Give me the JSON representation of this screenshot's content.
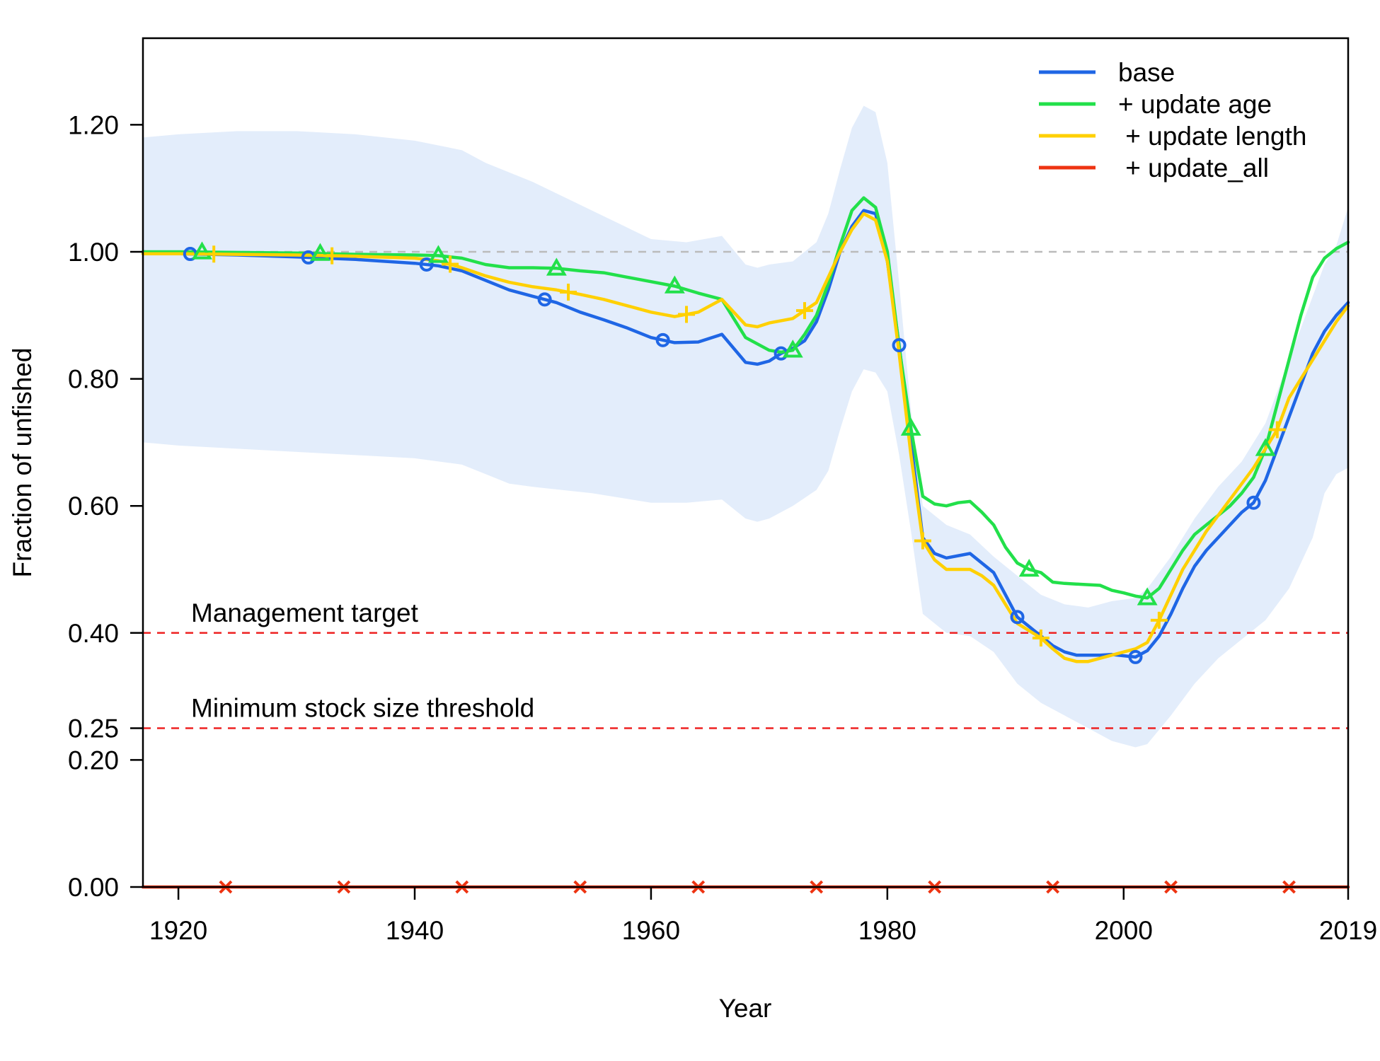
{
  "chart_data": {
    "type": "line",
    "xlabel": "Year",
    "ylabel": "Fraction of unfished",
    "xlim": [
      1917,
      2019
    ],
    "ylim": [
      0,
      1.31
    ],
    "x_ticks": [
      {
        "value": 1920,
        "label": "1920"
      },
      {
        "value": 1940,
        "label": "1940"
      },
      {
        "value": 1960,
        "label": "1960"
      },
      {
        "value": 1980,
        "label": "1980"
      },
      {
        "value": 2000,
        "label": "2000"
      },
      {
        "value": 2019,
        "label": "2019"
      }
    ],
    "y_ticks": [
      {
        "value": 0.0,
        "label": "0.00"
      },
      {
        "value": 0.2,
        "label": "0.20"
      },
      {
        "value": 0.25,
        "label": "0.25"
      },
      {
        "value": 0.4,
        "label": "0.40"
      },
      {
        "value": 0.6,
        "label": "0.60"
      },
      {
        "value": 0.8,
        "label": "0.80"
      },
      {
        "value": 1.0,
        "label": "1.00"
      },
      {
        "value": 1.2,
        "label": "1.20"
      }
    ],
    "grid": false,
    "legend_position": "top-right",
    "reference_lines": [
      {
        "value": 1.0,
        "label": "",
        "color": "#bbbbbb",
        "style": "dashed"
      },
      {
        "value": 0.4,
        "label": "Management target",
        "color": "#ee2222",
        "style": "dashed"
      },
      {
        "value": 0.25,
        "label": "Minimum stock size threshold",
        "color": "#ee2222",
        "style": "dashed"
      }
    ],
    "uncertainty_band": {
      "series": "base",
      "color": "#e3edfb",
      "x": [
        1917,
        1920,
        1925,
        1930,
        1935,
        1940,
        1944,
        1946,
        1948,
        1950,
        1955,
        1960,
        1963,
        1966,
        1968,
        1969,
        1970,
        1972,
        1974,
        1975,
        1976,
        1977,
        1978,
        1979,
        1980,
        1981,
        1982,
        1983,
        1985,
        1987,
        1989,
        1991,
        1993,
        1995,
        1997,
        1999,
        2001,
        2002,
        2004,
        2006,
        2008,
        2010,
        2012,
        2014,
        2016,
        2017,
        2018,
        2019
      ],
      "upper": [
        1.18,
        1.185,
        1.19,
        1.19,
        1.185,
        1.175,
        1.16,
        1.14,
        1.125,
        1.11,
        1.065,
        1.02,
        1.015,
        1.025,
        0.98,
        0.975,
        0.98,
        0.985,
        1.015,
        1.06,
        1.13,
        1.195,
        1.23,
        1.22,
        1.14,
        0.95,
        0.75,
        0.6,
        0.57,
        0.555,
        0.52,
        0.49,
        0.46,
        0.445,
        0.44,
        0.45,
        0.455,
        0.47,
        0.52,
        0.58,
        0.63,
        0.67,
        0.73,
        0.83,
        0.93,
        0.98,
        1.01,
        1.07
      ],
      "lower": [
        0.7,
        0.695,
        0.69,
        0.685,
        0.68,
        0.675,
        0.665,
        0.65,
        0.635,
        0.63,
        0.62,
        0.605,
        0.605,
        0.61,
        0.58,
        0.575,
        0.58,
        0.6,
        0.625,
        0.655,
        0.72,
        0.78,
        0.815,
        0.81,
        0.78,
        0.68,
        0.56,
        0.43,
        0.4,
        0.395,
        0.37,
        0.32,
        0.29,
        0.27,
        0.25,
        0.23,
        0.22,
        0.225,
        0.27,
        0.32,
        0.36,
        0.39,
        0.42,
        0.47,
        0.55,
        0.62,
        0.65,
        0.66
      ]
    },
    "series": [
      {
        "name": "base",
        "color": "#1f66e5",
        "marker": "circle",
        "marker_x": [
          1921,
          1931,
          1941,
          1951,
          1961,
          1971,
          1981,
          1991,
          2001,
          2011
        ],
        "x": [
          1917,
          1920,
          1925,
          1930,
          1935,
          1940,
          1942,
          1944,
          1946,
          1948,
          1950,
          1952,
          1954,
          1956,
          1958,
          1960,
          1962,
          1964,
          1966,
          1968,
          1969,
          1970,
          1971,
          1972,
          1973,
          1974,
          1975,
          1976,
          1977,
          1978,
          1979,
          1980,
          1981,
          1982,
          1983,
          1984,
          1985,
          1987,
          1988,
          1989,
          1990,
          1991,
          1992,
          1993,
          1994,
          1995,
          1996,
          1997,
          1998,
          1999,
          2000,
          2001,
          2002,
          2003,
          2004,
          2005,
          2006,
          2007,
          2008,
          2009,
          2010,
          2011,
          2012,
          2013,
          2014,
          2015,
          2016,
          2017,
          2018,
          2019
        ],
        "y": [
          1.0,
          0.997,
          0.995,
          0.992,
          0.988,
          0.982,
          0.978,
          0.97,
          0.955,
          0.94,
          0.93,
          0.92,
          0.905,
          0.893,
          0.88,
          0.865,
          0.857,
          0.858,
          0.87,
          0.826,
          0.823,
          0.828,
          0.84,
          0.848,
          0.86,
          0.89,
          0.94,
          1.0,
          1.04,
          1.065,
          1.06,
          0.985,
          0.853,
          0.7,
          0.55,
          0.525,
          0.518,
          0.525,
          0.51,
          0.495,
          0.46,
          0.425,
          0.41,
          0.395,
          0.38,
          0.37,
          0.365,
          0.365,
          0.365,
          0.366,
          0.364,
          0.362,
          0.372,
          0.395,
          0.43,
          0.47,
          0.505,
          0.53,
          0.55,
          0.57,
          0.59,
          0.605,
          0.64,
          0.69,
          0.74,
          0.79,
          0.84,
          0.875,
          0.9,
          0.92
        ]
      },
      {
        "name": "+ update age",
        "color": "#22e04a",
        "marker": "triangle",
        "marker_x": [
          1922,
          1932,
          1942,
          1952,
          1962,
          1972,
          1982,
          1992,
          2002,
          2012
        ],
        "x": [
          1917,
          1920,
          1925,
          1930,
          1935,
          1940,
          1942,
          1944,
          1946,
          1948,
          1950,
          1952,
          1954,
          1956,
          1958,
          1960,
          1962,
          1964,
          1966,
          1967,
          1968,
          1969,
          1970,
          1971,
          1972,
          1973,
          1974,
          1975,
          1976,
          1977,
          1978,
          1979,
          1980,
          1981,
          1982,
          1983,
          1984,
          1985,
          1986,
          1987,
          1988,
          1989,
          1990,
          1991,
          1992,
          1993,
          1994,
          1995,
          1996,
          1997,
          1998,
          1999,
          2000,
          2001,
          2002,
          2003,
          2004,
          2005,
          2006,
          2007,
          2008,
          2009,
          2010,
          2011,
          2012,
          2013,
          2014,
          2015,
          2016,
          2017,
          2018,
          2019
        ],
        "y": [
          1.0,
          1.0,
          0.999,
          0.998,
          0.996,
          0.995,
          0.994,
          0.99,
          0.98,
          0.975,
          0.975,
          0.974,
          0.97,
          0.967,
          0.96,
          0.953,
          0.946,
          0.935,
          0.925,
          0.895,
          0.865,
          0.855,
          0.845,
          0.842,
          0.845,
          0.87,
          0.9,
          0.95,
          1.01,
          1.065,
          1.085,
          1.07,
          1.0,
          0.85,
          0.722,
          0.615,
          0.603,
          0.6,
          0.605,
          0.607,
          0.59,
          0.57,
          0.535,
          0.51,
          0.5,
          0.495,
          0.48,
          0.478,
          0.477,
          0.476,
          0.475,
          0.467,
          0.463,
          0.458,
          0.455,
          0.47,
          0.5,
          0.53,
          0.555,
          0.57,
          0.585,
          0.6,
          0.62,
          0.645,
          0.69,
          0.76,
          0.83,
          0.9,
          0.96,
          0.99,
          1.005,
          1.015
        ]
      },
      {
        "name": " + update length",
        "color": "#ffd000",
        "marker": "plus",
        "marker_x": [
          1923,
          1933,
          1943,
          1953,
          1963,
          1973,
          1983,
          1993,
          2003,
          2013
        ],
        "x": [
          1917,
          1920,
          1925,
          1930,
          1935,
          1940,
          1942,
          1944,
          1946,
          1948,
          1950,
          1952,
          1954,
          1956,
          1958,
          1960,
          1962,
          1964,
          1966,
          1968,
          1969,
          1970,
          1972,
          1974,
          1975,
          1976,
          1977,
          1978,
          1979,
          1980,
          1981,
          1982,
          1983,
          1984,
          1985,
          1987,
          1988,
          1989,
          1990,
          1991,
          1993,
          1994,
          1995,
          1996,
          1997,
          1998,
          1999,
          2000,
          2001,
          2002,
          2003,
          2004,
          2005,
          2006,
          2007,
          2008,
          2009,
          2010,
          2011,
          2012,
          2013,
          2014,
          2015,
          2016,
          2017,
          2018,
          2019
        ],
        "y": [
          0.997,
          0.997,
          0.996,
          0.995,
          0.993,
          0.99,
          0.986,
          0.975,
          0.962,
          0.952,
          0.945,
          0.94,
          0.933,
          0.925,
          0.915,
          0.905,
          0.898,
          0.905,
          0.925,
          0.885,
          0.882,
          0.888,
          0.895,
          0.92,
          0.96,
          1.0,
          1.035,
          1.06,
          1.05,
          0.985,
          0.84,
          0.68,
          0.545,
          0.515,
          0.5,
          0.5,
          0.49,
          0.475,
          0.445,
          0.415,
          0.392,
          0.375,
          0.36,
          0.355,
          0.355,
          0.36,
          0.365,
          0.37,
          0.375,
          0.385,
          0.42,
          0.46,
          0.5,
          0.53,
          0.56,
          0.585,
          0.61,
          0.635,
          0.66,
          0.69,
          0.72,
          0.77,
          0.8,
          0.83,
          0.86,
          0.89,
          0.915
        ]
      },
      {
        "name": " + update_all",
        "color": "#ee3311",
        "marker": "cross",
        "marker_x": [
          1924,
          1934,
          1944,
          1954,
          1964,
          1974,
          1984,
          1994,
          2004,
          2014
        ],
        "x": [
          1917,
          2019
        ],
        "y": [
          0.0,
          0.0
        ]
      }
    ]
  }
}
